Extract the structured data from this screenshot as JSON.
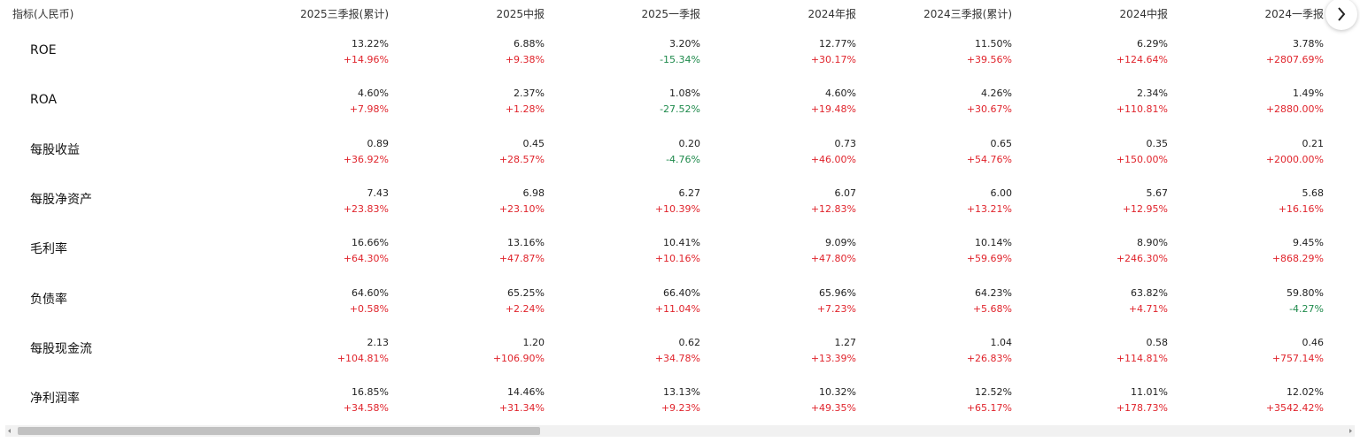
{
  "table": {
    "header": {
      "label": "指标(人民币)",
      "columns": [
        "2025三季报(累计)",
        "2025中报",
        "2025一季报",
        "2024年报",
        "2024三季报(累计)",
        "2024中报",
        "2024一季报"
      ]
    },
    "colors": {
      "up": "#e0242c",
      "down": "#1f8a4c"
    },
    "rows": [
      {
        "label": "ROE",
        "cells": [
          {
            "value": "13.22%",
            "change": "+14.96%"
          },
          {
            "value": "6.88%",
            "change": "+9.38%"
          },
          {
            "value": "3.20%",
            "change": "-15.34%"
          },
          {
            "value": "12.77%",
            "change": "+30.17%"
          },
          {
            "value": "11.50%",
            "change": "+39.56%"
          },
          {
            "value": "6.29%",
            "change": "+124.64%"
          },
          {
            "value": "3.78%",
            "change": "+2807.69%"
          }
        ]
      },
      {
        "label": "ROA",
        "cells": [
          {
            "value": "4.60%",
            "change": "+7.98%"
          },
          {
            "value": "2.37%",
            "change": "+1.28%"
          },
          {
            "value": "1.08%",
            "change": "-27.52%"
          },
          {
            "value": "4.60%",
            "change": "+19.48%"
          },
          {
            "value": "4.26%",
            "change": "+30.67%"
          },
          {
            "value": "2.34%",
            "change": "+110.81%"
          },
          {
            "value": "1.49%",
            "change": "+2880.00%"
          }
        ]
      },
      {
        "label": "每股收益",
        "cells": [
          {
            "value": "0.89",
            "change": "+36.92%"
          },
          {
            "value": "0.45",
            "change": "+28.57%"
          },
          {
            "value": "0.20",
            "change": "-4.76%"
          },
          {
            "value": "0.73",
            "change": "+46.00%"
          },
          {
            "value": "0.65",
            "change": "+54.76%"
          },
          {
            "value": "0.35",
            "change": "+150.00%"
          },
          {
            "value": "0.21",
            "change": "+2000.00%"
          }
        ]
      },
      {
        "label": "每股净资产",
        "cells": [
          {
            "value": "7.43",
            "change": "+23.83%"
          },
          {
            "value": "6.98",
            "change": "+23.10%"
          },
          {
            "value": "6.27",
            "change": "+10.39%"
          },
          {
            "value": "6.07",
            "change": "+12.83%"
          },
          {
            "value": "6.00",
            "change": "+13.21%"
          },
          {
            "value": "5.67",
            "change": "+12.95%"
          },
          {
            "value": "5.68",
            "change": "+16.16%"
          }
        ]
      },
      {
        "label": "毛利率",
        "cells": [
          {
            "value": "16.66%",
            "change": "+64.30%"
          },
          {
            "value": "13.16%",
            "change": "+47.87%"
          },
          {
            "value": "10.41%",
            "change": "+10.16%"
          },
          {
            "value": "9.09%",
            "change": "+47.80%"
          },
          {
            "value": "10.14%",
            "change": "+59.69%"
          },
          {
            "value": "8.90%",
            "change": "+246.30%"
          },
          {
            "value": "9.45%",
            "change": "+868.29%"
          }
        ]
      },
      {
        "label": "负债率",
        "cells": [
          {
            "value": "64.60%",
            "change": "+0.58%"
          },
          {
            "value": "65.25%",
            "change": "+2.24%"
          },
          {
            "value": "66.40%",
            "change": "+11.04%"
          },
          {
            "value": "65.96%",
            "change": "+7.23%"
          },
          {
            "value": "64.23%",
            "change": "+5.68%"
          },
          {
            "value": "63.82%",
            "change": "+4.71%"
          },
          {
            "value": "59.80%",
            "change": "-4.27%"
          }
        ]
      },
      {
        "label": "每股现金流",
        "cells": [
          {
            "value": "2.13",
            "change": "+104.81%"
          },
          {
            "value": "1.20",
            "change": "+106.90%"
          },
          {
            "value": "0.62",
            "change": "+34.78%"
          },
          {
            "value": "1.27",
            "change": "+13.39%"
          },
          {
            "value": "1.04",
            "change": "+26.83%"
          },
          {
            "value": "0.58",
            "change": "+114.81%"
          },
          {
            "value": "0.46",
            "change": "+757.14%"
          }
        ]
      },
      {
        "label": "净利润率",
        "cells": [
          {
            "value": "16.85%",
            "change": "+34.58%"
          },
          {
            "value": "14.46%",
            "change": "+31.34%"
          },
          {
            "value": "13.13%",
            "change": "+9.23%"
          },
          {
            "value": "10.32%",
            "change": "+49.35%"
          },
          {
            "value": "12.52%",
            "change": "+65.17%"
          },
          {
            "value": "11.01%",
            "change": "+178.73%"
          },
          {
            "value": "12.02%",
            "change": "+3542.42%"
          }
        ]
      }
    ]
  }
}
